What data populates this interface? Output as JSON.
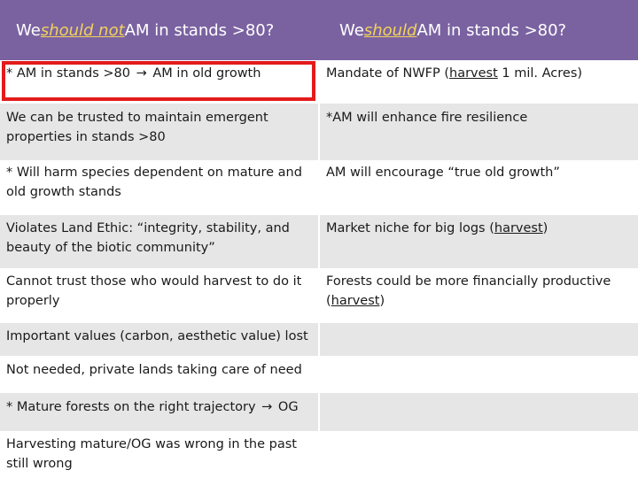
{
  "header": {
    "left": {
      "pre": "We ",
      "emph": "should not",
      "post": " AM in stands >80?"
    },
    "right": {
      "pre": "We ",
      "emph": "should",
      "post": " AM in stands >80?"
    }
  },
  "rows": [
    {
      "left": {
        "a": "* AM in stands >80 ",
        "arrow": "→",
        "b": " AM in old growth"
      },
      "right": {
        "a": "Mandate of NWFP (",
        "u": "harvest",
        "b": " 1 mil. Acres)"
      }
    },
    {
      "left": "We can be trusted to maintain emergent properties in stands >80",
      "right": "*AM will enhance fire resilience"
    },
    {
      "left": "* Will harm species dependent on mature and old growth stands",
      "right": "AM will encourage “true old growth”"
    },
    {
      "left": "Violates Land Ethic: “integrity, stability, and beauty of the biotic community”",
      "right": {
        "a": "Market niche for big logs (",
        "u": "harvest",
        "b": ")"
      }
    },
    {
      "left": "Cannot trust those who would harvest to do it properly",
      "right": {
        "a": "Forests could be more financially productive (",
        "u": "harvest",
        "b": ")"
      }
    },
    {
      "left": "Important values (carbon, aesthetic value) lost",
      "right": ""
    },
    {
      "left": "Not needed, private lands taking care of need",
      "right": ""
    },
    {
      "left": {
        "a": "* Mature forests on the right trajectory ",
        "arrow": "→",
        "b": " OG"
      },
      "right": ""
    },
    {
      "left": "Harvesting mature/OG was wrong in the past still wrong",
      "right": ""
    }
  ],
  "colors": {
    "header_bg": "#7a62a1",
    "header_emphasis": "#f2d35a",
    "row_shade": "#e6e6e6",
    "highlight_border": "#e31b1b"
  }
}
